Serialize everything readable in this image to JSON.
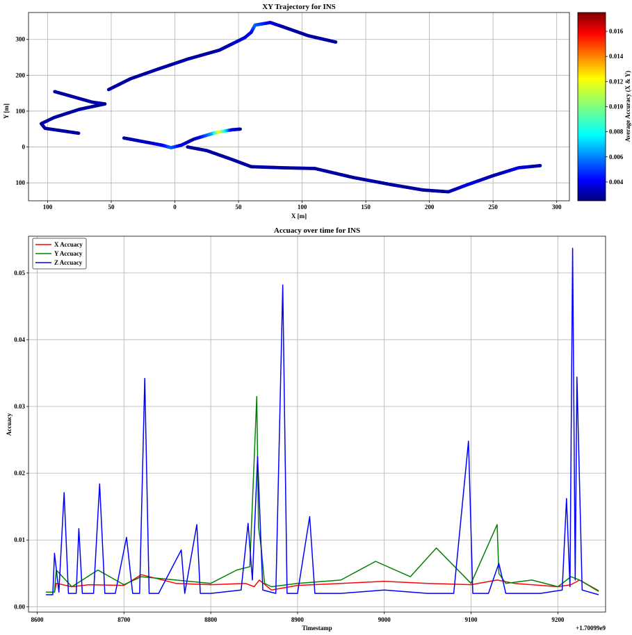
{
  "chart_data": [
    {
      "type": "scatter",
      "title": "XY Trajectory for INS",
      "xlabel": "X [m]",
      "ylabel": "Y [m]",
      "xlim": [
        -115,
        310
      ],
      "ylim": [
        -150,
        375
      ],
      "x_ticks": [
        -100,
        -50,
        0,
        50,
        100,
        150,
        200,
        250,
        300
      ],
      "x_tick_labels": [
        "100",
        "50",
        "0",
        "50",
        "100",
        "150",
        "200",
        "250",
        "300"
      ],
      "y_ticks": [
        -100,
        0,
        100,
        200,
        300
      ],
      "y_tick_labels": [
        "100",
        "0",
        "100",
        "200",
        "300"
      ],
      "grid": true,
      "colorbar": {
        "label": "Average Accuracy (X & Y)",
        "range": [
          0.0025,
          0.0175
        ],
        "ticks": [
          0.004,
          0.006,
          0.008,
          0.01,
          0.012,
          0.014,
          0.016
        ],
        "tick_labels": [
          "0.004",
          "0.006",
          "0.008",
          "0.010",
          "0.012",
          "0.014",
          "0.016"
        ],
        "colormap": "jet"
      },
      "points": [
        [
          -55,
          120,
          0.003
        ],
        [
          -65,
          125,
          0.003
        ],
        [
          -80,
          140,
          0.003
        ],
        [
          -95,
          155,
          0.003
        ],
        [
          -52,
          160,
          0.003
        ],
        [
          -35,
          190,
          0.003
        ],
        [
          -15,
          215,
          0.003
        ],
        [
          10,
          245,
          0.003
        ],
        [
          35,
          270,
          0.003
        ],
        [
          55,
          305,
          0.004
        ],
        [
          60,
          320,
          0.004
        ],
        [
          63,
          340,
          0.006
        ],
        [
          75,
          347,
          0.004
        ],
        [
          85,
          335,
          0.003
        ],
        [
          105,
          310,
          0.003
        ],
        [
          127,
          292,
          0.003
        ],
        [
          -55,
          120,
          0.003
        ],
        [
          -75,
          105,
          0.003
        ],
        [
          -95,
          82,
          0.003
        ],
        [
          -105,
          65,
          0.003
        ],
        [
          -102,
          52,
          0.003
        ],
        [
          -75,
          38,
          0.003
        ],
        [
          -40,
          25,
          0.003
        ],
        [
          -10,
          5,
          0.004
        ],
        [
          -3,
          -2,
          0.006
        ],
        [
          5,
          5,
          0.004
        ],
        [
          15,
          22,
          0.003
        ],
        [
          30,
          38,
          0.007
        ],
        [
          35,
          42,
          0.012
        ],
        [
          45,
          48,
          0.004
        ],
        [
          52,
          50,
          0.003
        ],
        [
          10,
          0,
          0.003
        ],
        [
          25,
          -10,
          0.003
        ],
        [
          45,
          -35,
          0.003
        ],
        [
          60,
          -55,
          0.003
        ],
        [
          85,
          -58,
          0.003
        ],
        [
          110,
          -60,
          0.003
        ],
        [
          140,
          -85,
          0.003
        ],
        [
          170,
          -105,
          0.003
        ],
        [
          195,
          -120,
          0.003
        ],
        [
          215,
          -125,
          0.003
        ],
        [
          230,
          -105,
          0.004
        ],
        [
          250,
          -80,
          0.003
        ],
        [
          270,
          -58,
          0.004
        ],
        [
          287,
          -52,
          0.003
        ]
      ]
    },
    {
      "type": "line",
      "title": "Accuacy over time for INS",
      "xlabel": "Timestamp",
      "ylabel": "Accuacy",
      "x_offset_label": "+1.70099e9",
      "xlim": [
        8590,
        9255
      ],
      "ylim": [
        -0.0008,
        0.0555
      ],
      "x_ticks": [
        8600,
        8700,
        8800,
        8900,
        9000,
        9100,
        9200
      ],
      "y_ticks": [
        0.0,
        0.01,
        0.02,
        0.03,
        0.04,
        0.05
      ],
      "y_tick_labels": [
        "0.00",
        "0.01",
        "0.02",
        "0.03",
        "0.04",
        "0.05"
      ],
      "grid": true,
      "legend_position": "top-left",
      "series": [
        {
          "name": "X Accuacy",
          "color": "#ff0000",
          "x": [
            8610,
            8620,
            8622,
            8640,
            8660,
            8700,
            8720,
            8760,
            8800,
            8840,
            8850,
            8856,
            8870,
            8900,
            8950,
            9000,
            9050,
            9100,
            9130,
            9150,
            9200,
            9215,
            9225,
            9247
          ],
          "y": [
            0.0022,
            0.0022,
            0.0035,
            0.003,
            0.0033,
            0.0032,
            0.0048,
            0.0035,
            0.0033,
            0.0035,
            0.003,
            0.004,
            0.0025,
            0.0032,
            0.0035,
            0.0038,
            0.0035,
            0.0033,
            0.004,
            0.0035,
            0.003,
            0.0033,
            0.004,
            0.0024
          ]
        },
        {
          "name": "Y Accuacy",
          "color": "#008000",
          "x": [
            8610,
            8620,
            8622,
            8640,
            8670,
            8700,
            8720,
            8760,
            8800,
            8830,
            8845,
            8853,
            8855,
            8858,
            8862,
            8870,
            8900,
            8950,
            8990,
            9030,
            9060,
            9100,
            9130,
            9132,
            9140,
            9170,
            9200,
            9215,
            9225,
            9247
          ],
          "y": [
            0.0022,
            0.0022,
            0.0055,
            0.003,
            0.0055,
            0.0033,
            0.0045,
            0.004,
            0.0035,
            0.0055,
            0.006,
            0.0315,
            0.012,
            0.009,
            0.0035,
            0.003,
            0.0035,
            0.004,
            0.0068,
            0.0045,
            0.0088,
            0.0035,
            0.0123,
            0.005,
            0.0035,
            0.004,
            0.003,
            0.0045,
            0.004,
            0.0023
          ]
        },
        {
          "name": "Z Accuacy",
          "color": "#0000ff",
          "x": [
            8610,
            8618,
            8620,
            8625,
            8631,
            8636,
            8645,
            8648,
            8652,
            8665,
            8672,
            8678,
            8690,
            8703,
            8710,
            8718,
            8724,
            8729,
            8740,
            8766,
            8770,
            8784,
            8788,
            8800,
            8835,
            8843,
            8848,
            8854,
            8860,
            8875,
            8883,
            8888,
            8900,
            8914,
            8920,
            8950,
            9000,
            9050,
            9080,
            9097,
            9102,
            9120,
            9132,
            9140,
            9180,
            9205,
            9210,
            9214,
            9217,
            9220,
            9222,
            9228,
            9247
          ],
          "y": [
            0.0018,
            0.0018,
            0.008,
            0.0022,
            0.0171,
            0.002,
            0.002,
            0.0117,
            0.002,
            0.002,
            0.0184,
            0.002,
            0.002,
            0.0104,
            0.002,
            0.002,
            0.0342,
            0.002,
            0.002,
            0.0085,
            0.002,
            0.0123,
            0.002,
            0.002,
            0.0025,
            0.0125,
            0.004,
            0.0225,
            0.0025,
            0.002,
            0.0482,
            0.002,
            0.002,
            0.0135,
            0.002,
            0.002,
            0.0025,
            0.002,
            0.002,
            0.0248,
            0.002,
            0.002,
            0.0065,
            0.002,
            0.002,
            0.0025,
            0.0162,
            0.003,
            0.0537,
            0.004,
            0.0344,
            0.0025,
            0.0018
          ]
        }
      ]
    }
  ]
}
